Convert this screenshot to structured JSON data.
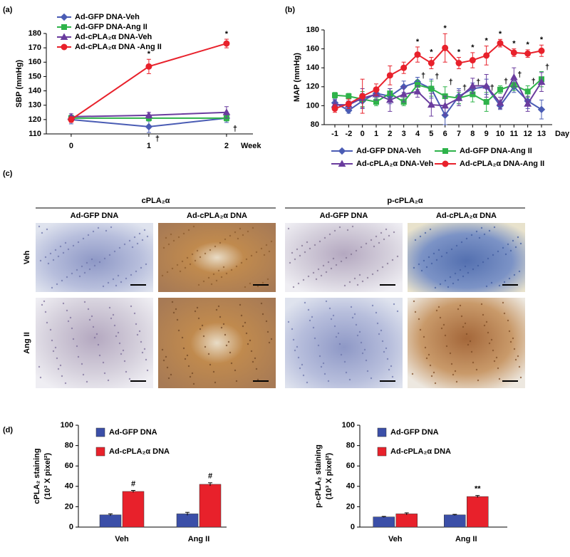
{
  "chart_data": [
    {
      "type": "line",
      "label": "(a)",
      "ylabel": "SBP (mmHg)",
      "xlabel": "Week",
      "x": [
        0,
        1,
        2
      ],
      "xlim": [
        -0.32,
        2.34
      ],
      "xticks": [
        0,
        1,
        2
      ],
      "ylim": [
        110,
        180
      ],
      "yticks": [
        110,
        120,
        130,
        140,
        150,
        160,
        170,
        180
      ],
      "legend": "upper left",
      "series": [
        {
          "name": "Ad-GFP DNA-Veh",
          "color": "#4a5cb4",
          "marker": "diamond",
          "values": [
            120,
            115,
            121
          ],
          "errors": [
            3,
            4,
            3
          ],
          "annotations": [
            null,
            "†",
            "†"
          ],
          "annotation_position": "below"
        },
        {
          "name": "Ad-GFP DNA-Ang II",
          "color": "#2eb34a",
          "marker": "square",
          "values": [
            121,
            121,
            121
          ],
          "errors": [
            2,
            2,
            2
          ]
        },
        {
          "name": "Ad-cPLA₂α DNA-Veh",
          "color": "#6a3c9e",
          "marker": "triangle",
          "values": [
            122,
            123,
            125
          ],
          "errors": [
            2,
            2,
            4
          ]
        },
        {
          "name": "Ad-cPLA₂α DNA -Ang II",
          "color": "#e8212b",
          "marker": "circle",
          "values": [
            120,
            157,
            173
          ],
          "errors": [
            2,
            5,
            3
          ],
          "annotations": [
            null,
            "*",
            "*"
          ],
          "annotation_position": "above"
        }
      ]
    },
    {
      "type": "line",
      "label": "(b)",
      "ylabel": "MAP (mmHg)",
      "xlabel": "Day",
      "categories": [
        "-1",
        "-2",
        "0",
        "1",
        "2",
        "3",
        "4",
        "5",
        "6",
        "7",
        "8",
        "9",
        "10",
        "11",
        "12",
        "13"
      ],
      "ylim": [
        80,
        180
      ],
      "yticks": [
        80,
        100,
        120,
        140,
        160,
        180
      ],
      "legend": "bottom",
      "series": [
        {
          "name": "Ad-GFP DNA-Veh",
          "color": "#4a5cb4",
          "marker": "diamond",
          "values": [
            103,
            95,
            105,
            113,
            110,
            120,
            125,
            118,
            90,
            110,
            118,
            120,
            100,
            120,
            105,
            96
          ],
          "errors": [
            4,
            3,
            8,
            5,
            8,
            6,
            5,
            10,
            10,
            8,
            6,
            8,
            4,
            6,
            8,
            10
          ]
        },
        {
          "name": "Ad-GFP DNA-Ang II",
          "color": "#2eb34a",
          "marker": "square",
          "values": [
            111,
            110,
            107,
            104,
            113,
            104,
            122,
            118,
            110,
            108,
            112,
            104,
            117,
            122,
            115,
            128
          ],
          "errors": [
            3,
            3,
            8,
            4,
            5,
            4,
            5,
            8,
            10,
            6,
            8,
            10,
            4,
            6,
            6,
            8
          ],
          "annotations": [
            null,
            null,
            null,
            null,
            null,
            null,
            "†",
            "†",
            "†",
            "†",
            "†",
            "†",
            "†",
            "†",
            "†",
            "†"
          ],
          "annotation_position": "above"
        },
        {
          "name": "Ad-cPLA₂α DNA-Veh",
          "color": "#6a3c9e",
          "marker": "triangle",
          "values": [
            101,
            101,
            108,
            112,
            106,
            112,
            115,
            101,
            100,
            108,
            121,
            121,
            103,
            130,
            102,
            125
          ],
          "errors": [
            5,
            4,
            10,
            6,
            12,
            8,
            6,
            12,
            10,
            8,
            8,
            12,
            6,
            10,
            8,
            10
          ]
        },
        {
          "name": "Ad-cPLA₂α DNA-Ang II",
          "color": "#e8212b",
          "marker": "circle",
          "values": [
            97,
            102,
            110,
            117,
            132,
            140,
            154,
            145,
            161,
            145,
            148,
            153,
            166,
            156,
            155,
            158
          ],
          "errors": [
            4,
            5,
            18,
            6,
            10,
            6,
            8,
            6,
            15,
            6,
            8,
            10,
            4,
            4,
            4,
            6
          ],
          "annotations": [
            null,
            null,
            null,
            null,
            null,
            null,
            "*",
            "*",
            "*",
            "*",
            "*",
            "*",
            "*",
            "*",
            "*",
            "*"
          ],
          "annotation_position": "above"
        }
      ]
    },
    {
      "type": "micrograph",
      "label": "(c)",
      "rows": [
        "Veh",
        "Ang II"
      ],
      "groups": [
        {
          "title": "cPLA₂α",
          "columns": [
            "Ad-GFP DNA",
            "Ad-cPLA₂α DNA"
          ]
        },
        {
          "title": "p-cPLA₂α",
          "columns": [
            "Ad-GFP DNA",
            "Ad-cPLA₂α DNA"
          ]
        }
      ]
    },
    {
      "type": "bar",
      "label": "(d)",
      "ylabel": [
        "cPLA₂ staining",
        "(10³ X pixel²)"
      ],
      "categories": [
        "Veh",
        "Ang II"
      ],
      "ylim": [
        0,
        100
      ],
      "yticks": [
        0,
        20,
        40,
        60,
        80,
        100
      ],
      "series": [
        {
          "name": "Ad-GFP DNA",
          "color": "#3b4fa8",
          "values": [
            12,
            13
          ],
          "errors": [
            1,
            1.5
          ]
        },
        {
          "name": "Ad-cPLA₂α DNA",
          "color": "#e8212b",
          "values": [
            35,
            42
          ],
          "errors": [
            1,
            1.5
          ],
          "annotations": [
            "#",
            "#"
          ]
        }
      ]
    },
    {
      "type": "bar",
      "ylabel": [
        "p-cPLA₂ staining",
        "(10³ X pixel²)"
      ],
      "categories": [
        "Veh",
        "Ang II"
      ],
      "ylim": [
        0,
        100
      ],
      "yticks": [
        0,
        20,
        40,
        60,
        80,
        100
      ],
      "series": [
        {
          "name": "Ad-GFP DNA",
          "color": "#3b4fa8",
          "values": [
            10,
            12
          ],
          "errors": [
            0.5,
            0.5
          ]
        },
        {
          "name": "Ad-cPLA₂α DNA",
          "color": "#e8212b",
          "values": [
            13,
            30
          ],
          "errors": [
            1,
            1
          ],
          "annotations": [
            null,
            "**"
          ]
        }
      ]
    }
  ]
}
